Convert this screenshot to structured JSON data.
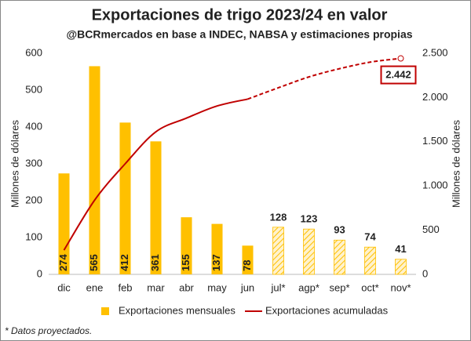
{
  "chart_data": {
    "type": "bar_line",
    "title": "Exportaciones de trigo 2023/24 en valor",
    "subtitle": "@BCRmercados en base a INDEC, NABSA y estimaciones propias",
    "y_label": "Millones de dólares",
    "y2_label": "Millones de dólares",
    "footnote": "* Datos proyectados.",
    "categories": [
      "dic",
      "ene",
      "feb",
      "mar",
      "abr",
      "may",
      "jun",
      "jul*",
      "agp*",
      "sep*",
      "oct*",
      "nov*"
    ],
    "series": [
      {
        "name": "Exportaciones mensuales",
        "color": "#ffc000",
        "values": [
          274,
          565,
          412,
          361,
          155,
          137,
          78,
          128,
          123,
          93,
          74,
          41
        ],
        "hatched": [
          false,
          false,
          false,
          false,
          false,
          false,
          false,
          true,
          true,
          true,
          true,
          true
        ]
      },
      {
        "name": "Exportaciones acumuladas",
        "color": "#c00000",
        "axis": "y2",
        "values": [
          274,
          839,
          1251,
          1612,
          1767,
          1904,
          1982,
          2110,
          2233,
          2326,
          2400,
          2442
        ],
        "dashed": [
          false,
          false,
          false,
          false,
          false,
          false,
          false,
          true,
          true,
          true,
          true,
          true
        ],
        "value_labels": [
          null,
          null,
          null,
          null,
          null,
          null,
          null,
          null,
          null,
          null,
          null,
          "2.442"
        ]
      }
    ],
    "ylim": [
      0,
      600
    ],
    "yticks": [
      0,
      100,
      200,
      300,
      400,
      500,
      600
    ],
    "y2lim": [
      0,
      2500
    ],
    "y2ticks": [
      0,
      500,
      {
        "value": 1000,
        "label": "1.000"
      },
      {
        "value": 1500,
        "label": "1.500"
      },
      {
        "value": 2000,
        "label": "2.000"
      },
      {
        "value": 2500,
        "label": "2.500"
      }
    ],
    "grid": false
  }
}
